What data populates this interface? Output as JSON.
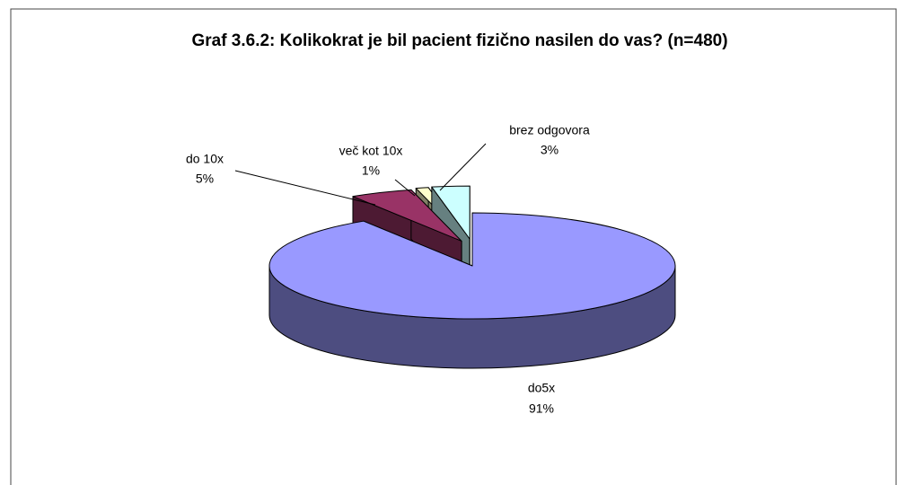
{
  "chart_data": {
    "type": "pie",
    "title": "Graf 3.6.2: Kolikokrat je bil pacient fizično nasilen do vas? (n=480)",
    "categories": [
      "do5x",
      "do 10x",
      "več kot 10x",
      "brez odgovora"
    ],
    "values": [
      91,
      5,
      1,
      3
    ],
    "value_labels": [
      "91%",
      "5%",
      "1%",
      "3%"
    ],
    "colors": [
      "#9999ff",
      "#993366",
      "#ffffcc",
      "#ccffff"
    ]
  }
}
